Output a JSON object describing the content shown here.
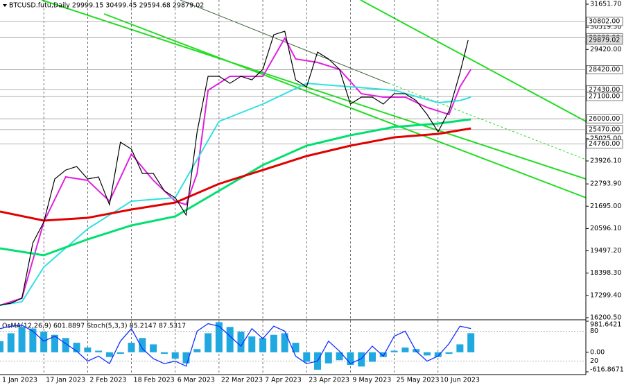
{
  "chart_data": [
    {
      "type": "line",
      "title": "BTCUSD.futu,Daily  29999.15 30499.45 29594.68 29879.02",
      "xlim": [
        0,
        214
      ],
      "xticks": [
        {
          "value": 0,
          "label": "1 Jan 2023"
        },
        {
          "value": 16,
          "label": "17 Jan 2023"
        },
        {
          "value": 32,
          "label": "2 Feb 2023"
        },
        {
          "value": 48,
          "label": "18 Feb 2023"
        },
        {
          "value": 64,
          "label": "6 Mar 2023"
        },
        {
          "value": 80,
          "label": "22 Mar 2023"
        },
        {
          "value": 96,
          "label": "7 Apr 2023"
        },
        {
          "value": 112,
          "label": "23 Apr 2023"
        },
        {
          "value": 128,
          "label": "9 May 2023"
        },
        {
          "value": 144,
          "label": "25 May 2023"
        },
        {
          "value": 160,
          "label": "10 Jun 2023"
        }
      ],
      "xgrid": true,
      "ylim": [
        16132,
        31857
      ],
      "yticks": [
        {
          "value": 31651.7,
          "label": "31651.70"
        },
        {
          "value": 30519.5,
          "label": "30519.50"
        },
        {
          "value": 29420,
          "label": "29420.00"
        },
        {
          "value": 25025,
          "label": "25025.00"
        },
        {
          "value": 23926.1,
          "label": "23926.10"
        },
        {
          "value": 22793.9,
          "label": "22793.90"
        },
        {
          "value": 21695,
          "label": "21695.00"
        },
        {
          "value": 20596.1,
          "label": "20596.10"
        },
        {
          "value": 19497.2,
          "label": "19497.20"
        },
        {
          "value": 18398.3,
          "label": "18398.30"
        },
        {
          "value": 17299.4,
          "label": "17299.40"
        },
        {
          "value": 16200.5,
          "label": "16200.50"
        }
      ],
      "levels": [
        {
          "value": 30802,
          "label": "30802.00"
        },
        {
          "value": 30000,
          "label": "30000.00"
        },
        {
          "value": 28420,
          "label": "28420.00"
        },
        {
          "value": 27430,
          "label": "27430.00"
        },
        {
          "value": 27100,
          "label": "27100.00"
        },
        {
          "value": 26000,
          "label": "26000.00"
        },
        {
          "value": 25470,
          "label": "25470.00"
        },
        {
          "value": 24760,
          "label": "24760.00"
        }
      ],
      "last_price": 29879.02,
      "series": [
        {
          "color": "#000000",
          "width": 1.2,
          "x": [
            0,
            4,
            8,
            12,
            16,
            20,
            24,
            28,
            32,
            36,
            40,
            44,
            48,
            52,
            56,
            60,
            64,
            68,
            72,
            76,
            80,
            84,
            88,
            92,
            96,
            100,
            104,
            108,
            112,
            116,
            120,
            124,
            128,
            132,
            136,
            140,
            144,
            148,
            152,
            156,
            160,
            164,
            168,
            171
          ],
          "values": [
            16816,
            16918,
            17160,
            19890,
            20917,
            23036,
            23480,
            23650,
            23036,
            23140,
            21770,
            24850,
            24506,
            23310,
            23310,
            22455,
            22113,
            21259,
            25360,
            28095,
            28095,
            27753,
            28095,
            27924,
            28437,
            30146,
            30317,
            27924,
            27582,
            29291,
            28950,
            28437,
            26728,
            27070,
            27070,
            26728,
            27240,
            27240,
            26900,
            26215,
            25360,
            26386,
            28266,
            29879.02
          ]
        },
        {
          "color": "#e00000",
          "width": 3,
          "x": [
            0,
            16,
            32,
            48,
            64,
            80,
            96,
            112,
            128,
            144,
            160,
            172
          ],
          "values": [
            21430,
            20985,
            21122,
            21532,
            21874,
            22797,
            23480,
            24164,
            24677,
            25087,
            25258,
            25531
          ]
        },
        {
          "color": "#00e070",
          "width": 3,
          "x": [
            0,
            16,
            32,
            48,
            64,
            80,
            96,
            112,
            128,
            144,
            160,
            172
          ],
          "values": [
            19618,
            19276,
            20063,
            20746,
            21190,
            22455,
            23720,
            24677,
            25190,
            25600,
            25770,
            25976
          ]
        },
        {
          "color": "#30e0e0",
          "width": 2,
          "x": [
            0,
            8,
            16,
            32,
            48,
            64,
            80,
            96,
            112,
            128,
            144,
            160,
            168,
            172
          ],
          "values": [
            16816,
            16987,
            18695,
            20575,
            21942,
            22113,
            25873,
            26728,
            27753,
            27582,
            27411,
            26796,
            26900,
            27070
          ]
        },
        {
          "color": "#e020e0",
          "width": 2,
          "x": [
            0,
            8,
            16,
            24,
            32,
            40,
            48,
            56,
            64,
            68,
            72,
            76,
            84,
            96,
            104,
            108,
            116,
            124,
            132,
            140,
            148,
            156,
            164,
            168,
            172
          ],
          "values": [
            16816,
            17160,
            20917,
            23139,
            22968,
            21942,
            24266,
            22968,
            21942,
            21771,
            23310,
            27411,
            28095,
            28095,
            29974,
            28950,
            28779,
            28437,
            27240,
            27070,
            27070,
            26557,
            26215,
            27582,
            28437
          ]
        }
      ]
    },
    {
      "type": "oscillator",
      "title": "OsMA(12,26,9) 601.8897  Stoch(5,3,3) 85.2147 87.5317",
      "x": [
        0,
        4,
        8,
        12,
        16,
        20,
        24,
        28,
        32,
        36,
        40,
        44,
        48,
        52,
        56,
        60,
        64,
        68,
        72,
        76,
        80,
        84,
        88,
        92,
        96,
        100,
        104,
        108,
        112,
        116,
        120,
        124,
        128,
        132,
        136,
        140,
        144,
        148,
        152,
        156,
        160,
        164,
        168,
        172
      ],
      "osma": {
        "color": "#20a8e0",
        "values": [
          350,
          600,
          800,
          750,
          650,
          550,
          450,
          300,
          150,
          50,
          -150,
          -50,
          300,
          450,
          250,
          -50,
          -200,
          -350,
          100,
          600,
          950,
          800,
          650,
          500,
          450,
          550,
          600,
          300,
          -300,
          -550,
          -350,
          -250,
          -400,
          -450,
          -300,
          -150,
          50,
          150,
          100,
          -100,
          -150,
          -50,
          250,
          601.8897
        ]
      },
      "stoch": {
        "color": "#1030ff",
        "values": [
          85,
          90,
          92,
          80,
          60,
          70,
          55,
          40,
          20,
          30,
          15,
          60,
          85,
          45,
          25,
          15,
          20,
          10,
          80,
          95,
          90,
          70,
          50,
          85,
          65,
          90,
          80,
          30,
          15,
          20,
          60,
          40,
          15,
          25,
          50,
          30,
          70,
          80,
          40,
          20,
          30,
          55,
          90,
          85.2147
        ]
      },
      "ylim": [
        -616.8671,
        981.6421
      ],
      "yticks": [
        981.6421,
        {
          "value": 0,
          "label": "0.00"
        },
        -616.8671
      ],
      "y2lim": [
        0,
        100
      ],
      "y2ticks": [
        80,
        20
      ]
    }
  ]
}
